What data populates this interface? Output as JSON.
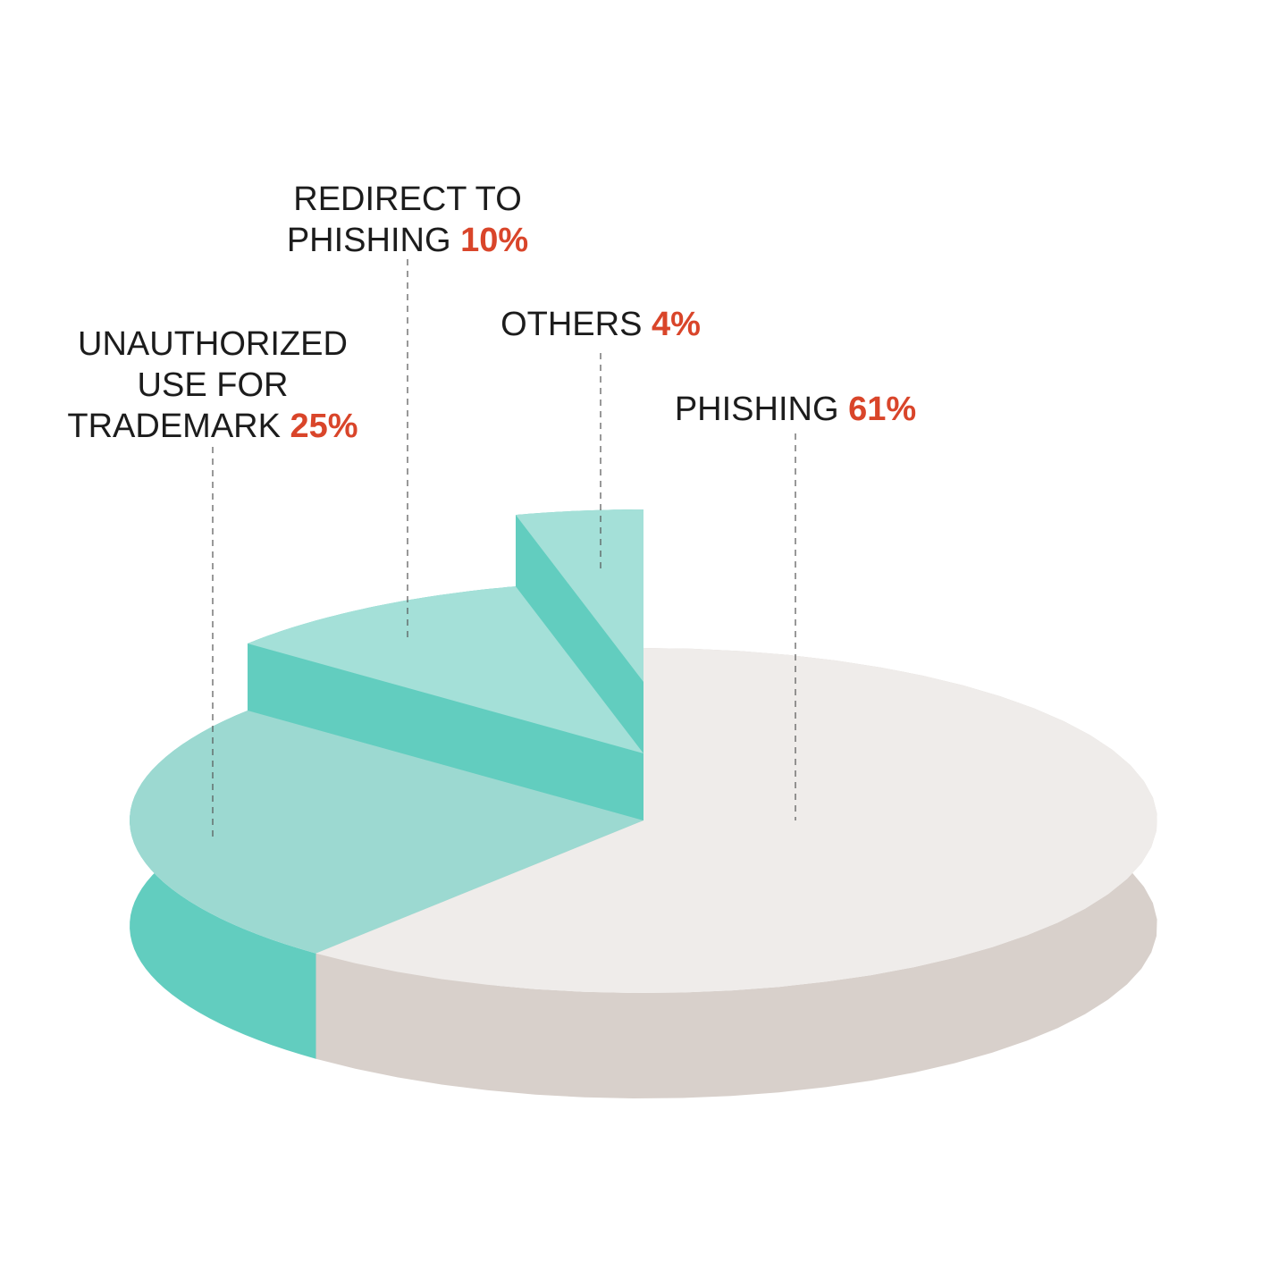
{
  "chart_data": {
    "type": "pie",
    "categories": [
      "PHISHING",
      "UNAUTHORIZED USE FOR TRADEMARK",
      "REDIRECT TO PHISHING",
      "OTHERS"
    ],
    "values": [
      61,
      25,
      10,
      4
    ],
    "value_labels": [
      "61%",
      "25%",
      "10%",
      "4%"
    ],
    "colors": [
      "#efecea",
      "#9cd9d1",
      "#a4e0d8",
      "#a4e0d8"
    ],
    "side_colors": [
      "#d8d0cb",
      "#62cdbf",
      "#62cdbf",
      "#62cdbf"
    ],
    "label_value_color": "#d9452a"
  }
}
